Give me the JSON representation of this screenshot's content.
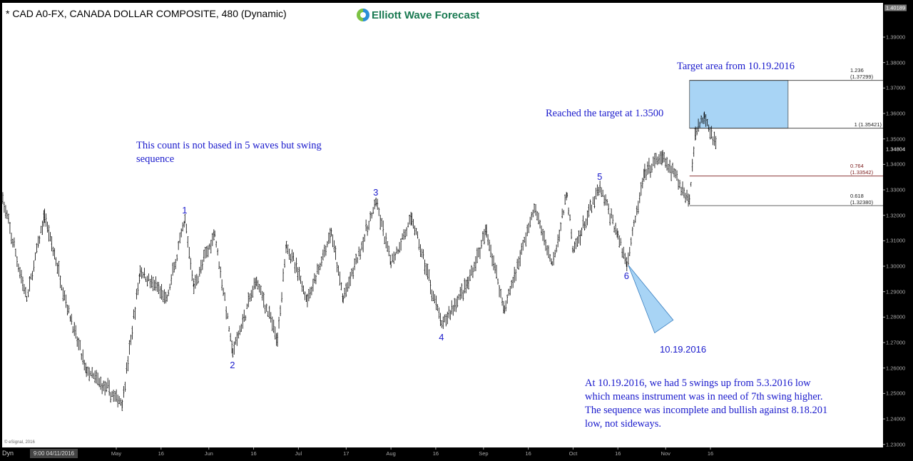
{
  "header": {
    "title": "* CAD A0-FX, CANADA DOLLAR COMPOSITE, 480 (Dynamic)",
    "logo_text": "Elliott Wave Forecast"
  },
  "footer": {
    "copyright": "© eSignal, 2016",
    "dyn_label": "Dyn",
    "cursor_label": "9:00 04/11/2016"
  },
  "chart_data": {
    "type": "ohlc-bar",
    "interval": "480 min",
    "colors": {
      "bars": "#000000",
      "annotation_text": "#1a1acc",
      "target_box": "#a8d4f5",
      "fib_0764": "#7a1a1a",
      "triangle": "#a8d4f5"
    },
    "y_axis": {
      "range": [
        1.2275,
        1.4045
      ],
      "ticks": [
        1.23,
        1.24,
        1.25,
        1.26,
        1.27,
        1.28,
        1.29,
        1.3,
        1.31,
        1.32,
        1.33,
        1.34,
        1.35,
        1.36,
        1.37,
        1.38,
        1.39
      ],
      "tick_format": "5dp",
      "high_label": "1.40189",
      "last_price": "1.34804"
    },
    "x_axis": {
      "ticks": [
        {
          "label": "May",
          "date": "2016-05-01"
        },
        {
          "label": "16",
          "date": "2016-05-16"
        },
        {
          "label": "Jun",
          "date": "2016-06-01"
        },
        {
          "label": "16",
          "date": "2016-06-16"
        },
        {
          "label": "Jul",
          "date": "2016-07-01"
        },
        {
          "label": "17",
          "date": "2016-07-17"
        },
        {
          "label": "Aug",
          "date": "2016-08-01"
        },
        {
          "label": "16",
          "date": "2016-08-16"
        },
        {
          "label": "Sep",
          "date": "2016-09-01"
        },
        {
          "label": "16",
          "date": "2016-09-16"
        },
        {
          "label": "Oct",
          "date": "2016-10-01"
        },
        {
          "label": "16",
          "date": "2016-10-16"
        },
        {
          "label": "Nov",
          "date": "2016-11-01"
        },
        {
          "label": "16",
          "date": "2016-11-16"
        }
      ]
    },
    "swing_path": [
      [
        "2016-03-24",
        1.326
      ],
      [
        "2016-04-01",
        1.287
      ],
      [
        "2016-04-07",
        1.32
      ],
      [
        "2016-04-16",
        1.278
      ],
      [
        "2016-04-21",
        1.259
      ],
      [
        "2016-05-03",
        1.246
      ],
      [
        "2016-05-09",
        1.298
      ],
      [
        "2016-05-18",
        1.287
      ],
      [
        "2016-05-24",
        1.318
      ],
      [
        "2016-05-27",
        1.292
      ],
      [
        "2016-06-03",
        1.313
      ],
      [
        "2016-06-09",
        1.266
      ],
      [
        "2016-06-17",
        1.295
      ],
      [
        "2016-06-24",
        1.271
      ],
      [
        "2016-06-27",
        1.309
      ],
      [
        "2016-07-04",
        1.287
      ],
      [
        "2016-07-12",
        1.313
      ],
      [
        "2016-07-16",
        1.287
      ],
      [
        "2016-07-27",
        1.325
      ],
      [
        "2016-08-01",
        1.301
      ],
      [
        "2016-08-08",
        1.319
      ],
      [
        "2016-08-18",
        1.277
      ],
      [
        "2016-08-27",
        1.294
      ],
      [
        "2016-09-02",
        1.314
      ],
      [
        "2016-09-08",
        1.283
      ],
      [
        "2016-09-18",
        1.323
      ],
      [
        "2016-09-24",
        1.301
      ],
      [
        "2016-09-29",
        1.328
      ],
      [
        "2016-10-01",
        1.306
      ],
      [
        "2016-10-10",
        1.331
      ],
      [
        "2016-10-16",
        1.312
      ],
      [
        "2016-10-19",
        1.301
      ],
      [
        "2016-10-25",
        1.337
      ],
      [
        "2016-10-31",
        1.343
      ],
      [
        "2016-11-09",
        1.326
      ],
      [
        "2016-11-11",
        1.353
      ],
      [
        "2016-11-14",
        1.359
      ],
      [
        "2016-11-18",
        1.348
      ]
    ],
    "wave_labels": [
      {
        "label": "1",
        "date": "2016-05-24",
        "price": 1.318,
        "pos": "above"
      },
      {
        "label": "2",
        "date": "2016-06-09",
        "price": 1.266,
        "pos": "below"
      },
      {
        "label": "3",
        "date": "2016-07-27",
        "price": 1.325,
        "pos": "above"
      },
      {
        "label": "4",
        "date": "2016-08-18",
        "price": 1.277,
        "pos": "below"
      },
      {
        "label": "5",
        "date": "2016-10-10",
        "price": 1.331,
        "pos": "above"
      },
      {
        "label": "6",
        "date": "2016-10-19",
        "price": 1.301,
        "pos": "below"
      }
    ],
    "fib_levels": [
      {
        "label": "1.236 (1.37299)",
        "price": 1.37299
      },
      {
        "label": "1 (1.35421)",
        "price": 1.35421
      },
      {
        "label": "0.764 (1.33542)",
        "price": 1.33542
      },
      {
        "label": "0.618 (1.32380)",
        "price": 1.3238
      }
    ],
    "target_box": {
      "from_date": "2016-11-09",
      "to_date": "2016-12-12",
      "top": 1.37299,
      "bottom": 1.35421
    },
    "annotations": {
      "target_area": "Target area from 10.19.2016",
      "reached": "Reached the target at 1.3500",
      "count_note": "This count is not based in 5 waves but swing sequence",
      "date_marker": "10.19.2016",
      "summary_lines": [
        "At 10.19.2016, we had 5 swings up from 5.3.2016 low",
        "which means instrument was in need of 7th swing higher.",
        "The sequence was incomplete and bullish against 8.18.201",
        "low, not sideways."
      ]
    }
  }
}
